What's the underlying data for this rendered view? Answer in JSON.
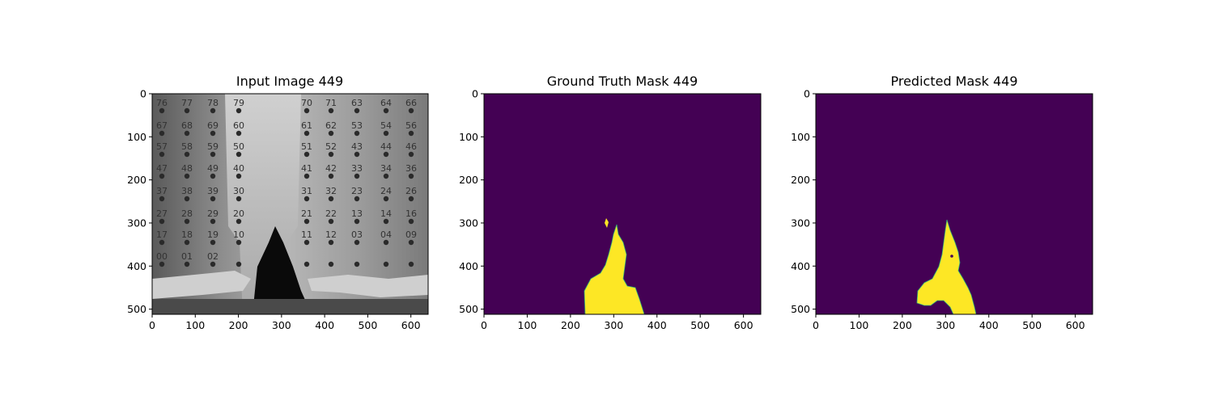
{
  "figure": {
    "panels": [
      {
        "title": "Input Image 449",
        "kind": "grayscale-photo",
        "x_ticks": [
          "0",
          "100",
          "200",
          "300",
          "400",
          "500",
          "600"
        ],
        "y_ticks": [
          "0",
          "100",
          "200",
          "300",
          "400",
          "500"
        ],
        "photo_labels": [
          "76",
          "77",
          "78",
          "79",
          "70",
          "71",
          "63",
          "64",
          "66",
          "67",
          "68",
          "69",
          "60",
          "61",
          "62",
          "53",
          "54",
          "56",
          "57",
          "58",
          "59",
          "50",
          "51",
          "52",
          "43",
          "44",
          "46",
          "47",
          "48",
          "49",
          "40",
          "41",
          "42",
          "33",
          "34",
          "36",
          "37",
          "38",
          "39",
          "30",
          "31",
          "32",
          "23",
          "24",
          "26",
          "27",
          "28",
          "29",
          "20",
          "21",
          "22",
          "13",
          "14",
          "16",
          "17",
          "18",
          "19",
          "10",
          "11",
          "12",
          "03",
          "04",
          "09",
          "00",
          "01",
          "02"
        ]
      },
      {
        "title": "Ground Truth Mask 449",
        "kind": "mask",
        "x_ticks": [
          "0",
          "100",
          "200",
          "300",
          "400",
          "500",
          "600"
        ],
        "y_ticks": [
          "0",
          "100",
          "200",
          "300",
          "400",
          "500"
        ]
      },
      {
        "title": "Predicted Mask 449",
        "kind": "mask",
        "x_ticks": [
          "0",
          "100",
          "200",
          "300",
          "400",
          "500",
          "600"
        ],
        "y_ticks": [
          "0",
          "100",
          "200",
          "300",
          "400",
          "500"
        ]
      }
    ],
    "colors": {
      "mask_background": "#440154",
      "mask_foreground": "#fde725",
      "mask_edge": "#35b779"
    }
  }
}
